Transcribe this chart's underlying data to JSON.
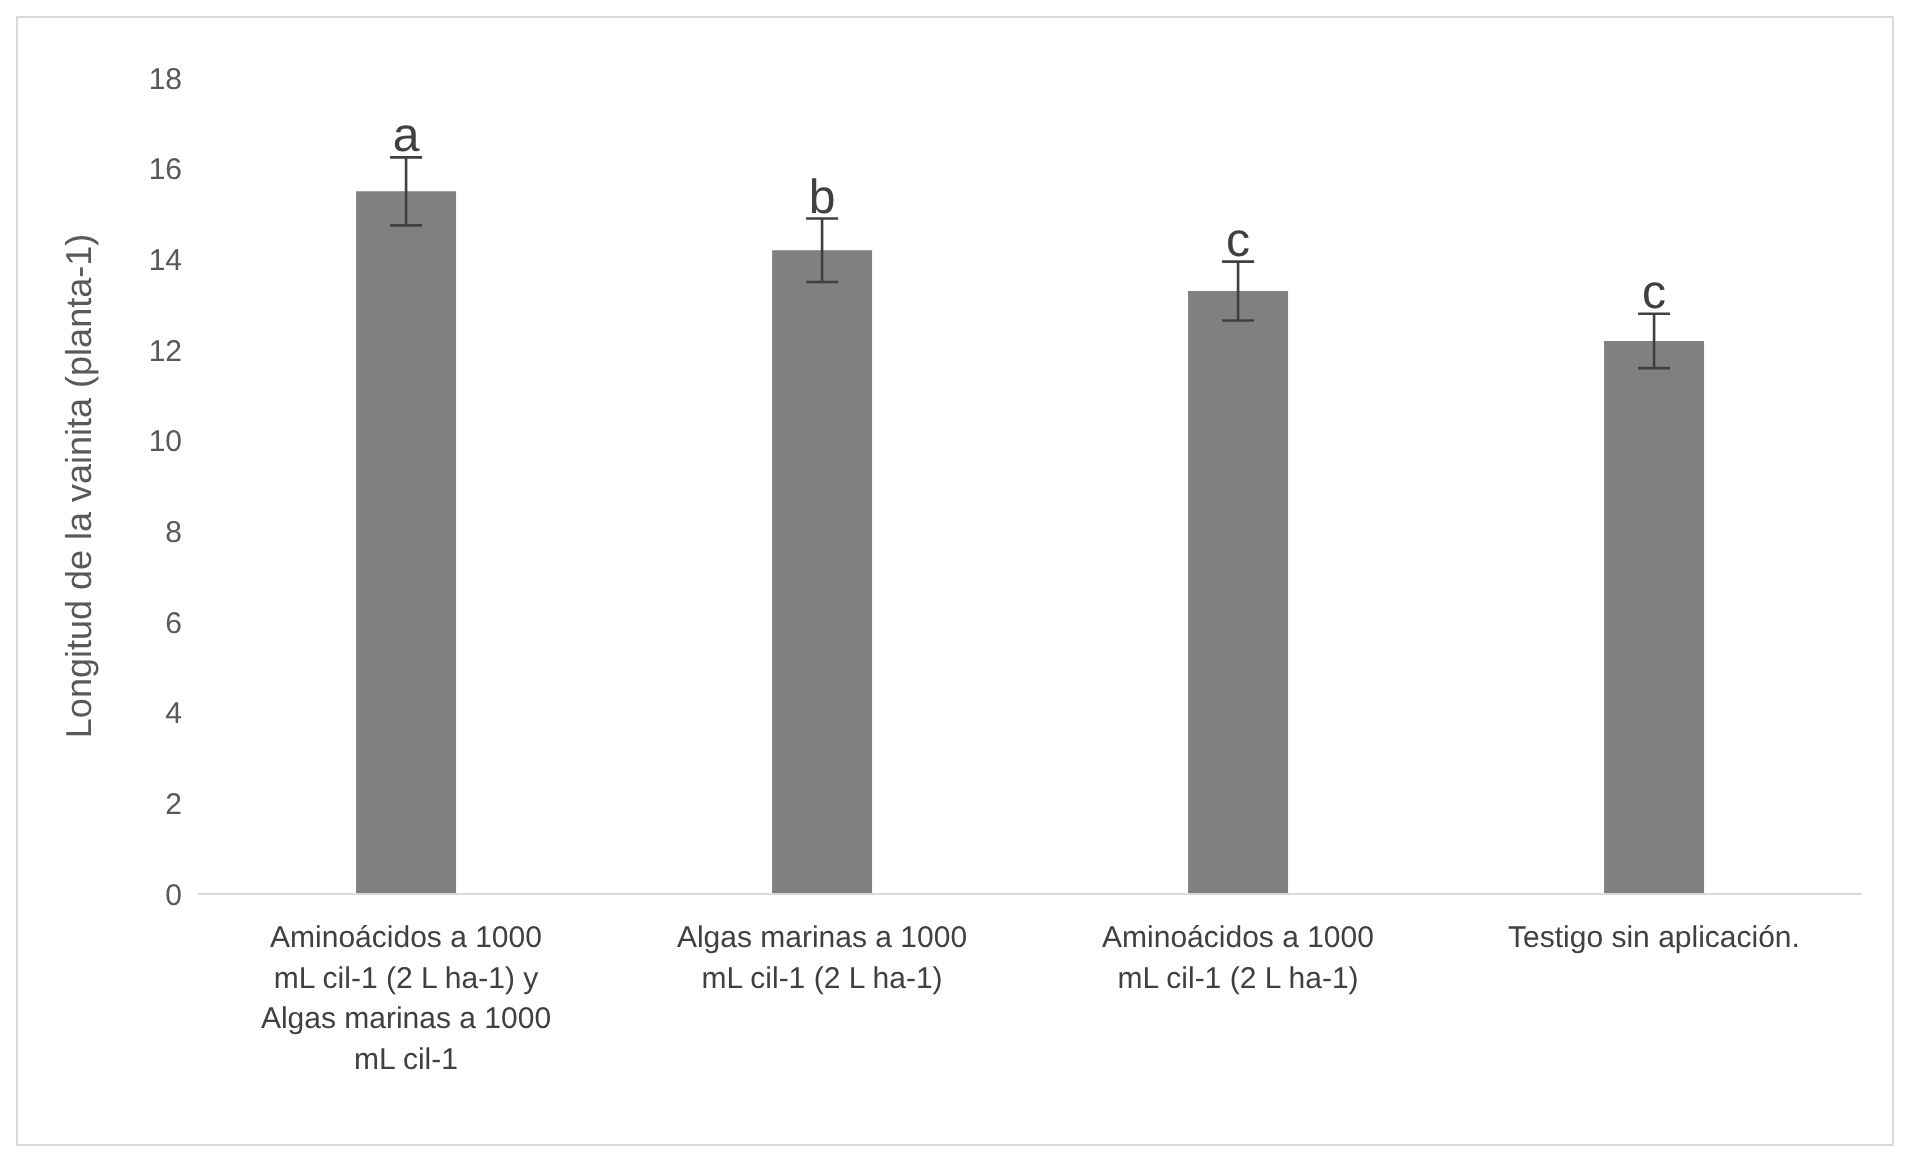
{
  "chart_data": {
    "type": "bar",
    "ylabel": "Longitud de la vainita (planta-1)",
    "categories": [
      "Aminoácidos a 1000 mL cil-1 (2 L ha-1) y Algas marinas a 1000 mL cil-1",
      "Algas marinas a 1000 mL cil-1 (2 L ha-1)",
      "Aminoácidos a 1000 mL cil-1 (2 L ha-1)",
      "Testigo sin aplicación."
    ],
    "values": [
      15.5,
      14.2,
      13.3,
      12.2
    ],
    "errors": [
      0.75,
      0.7,
      0.65,
      0.6
    ],
    "color": "#808080",
    "ylim": [
      0,
      18
    ],
    "yticks": [
      0,
      2,
      4,
      6,
      8,
      10,
      12,
      14,
      16,
      18
    ],
    "grid": false,
    "legend": false,
    "annotations": [
      {
        "text": "a",
        "x": "Aminoácidos a 1000 mL cil-1 (2 L ha-1) y Algas marinas a 1000 mL cil-1",
        "y": 16.25
      },
      {
        "text": "b",
        "x": "Algas marinas a 1000 mL cil-1 (2 L ha-1)",
        "y": 14.9
      },
      {
        "text": "c",
        "x": "Aminoácidos a 1000 mL cil-1 (2 L ha-1)",
        "y": 13.95
      },
      {
        "text": "c",
        "x": "Testigo sin aplicación.",
        "y": 12.8
      }
    ]
  }
}
